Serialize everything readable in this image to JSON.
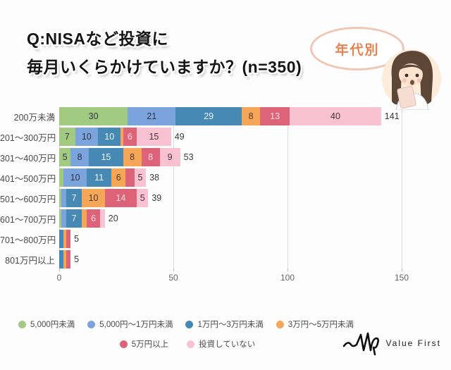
{
  "header": {
    "title_line1": "Q:NISAなど投資に",
    "title_line2": "毎月いくらかけていますか？(n=350)",
    "badge_label": "年代別"
  },
  "chart_data": {
    "type": "bar",
    "orientation": "horizontal-stacked",
    "title": "Q:NISAなど投資に毎月いくらかけていますか？(n=350)",
    "categories": [
      "200万未満",
      "201～300万円",
      "301～400万円",
      "401～500万円",
      "501～600万円",
      "601～700万円",
      "701～800万円",
      "801万円以上"
    ],
    "series": [
      {
        "name": "5,000円未満",
        "color": "#a2cb81",
        "label_color": "#33334a",
        "values": [
          30,
          7,
          5,
          2,
          1,
          1,
          0,
          0
        ]
      },
      {
        "name": "5,000円～1万円未満",
        "color": "#7ca4dc",
        "label_color": "#2e2e45",
        "values": [
          21,
          10,
          8,
          10,
          2,
          2,
          0,
          0
        ]
      },
      {
        "name": "1万円～3万円未満",
        "color": "#4589b4",
        "label_color": "#eef6fa",
        "values": [
          29,
          10,
          15,
          11,
          7,
          7,
          2,
          2
        ]
      },
      {
        "name": "3万円～5万円未満",
        "color": "#f5a757",
        "label_color": "#4f3a26",
        "values": [
          8,
          1,
          8,
          6,
          10,
          2,
          1,
          1
        ]
      },
      {
        "name": "5万円以上",
        "color": "#dc6378",
        "label_color": "#fbdde4",
        "values": [
          13,
          6,
          8,
          4,
          14,
          6,
          2,
          2
        ]
      },
      {
        "name": "投資していない",
        "color": "#f9c2d3",
        "label_color": "#463339",
        "values": [
          40,
          15,
          9,
          5,
          5,
          2,
          0,
          0
        ]
      }
    ],
    "totals": [
      141,
      49,
      53,
      38,
      39,
      20,
      5,
      5
    ],
    "xticks": [
      0,
      50,
      100,
      150
    ],
    "xmax": 150,
    "min_label_value": 5,
    "grid": true,
    "gridline_color": "#dcdcdc",
    "legend_position": "bottom",
    "legend_rows": [
      [
        0,
        1,
        2,
        3
      ],
      [
        4,
        5
      ]
    ]
  },
  "footer": {
    "brand": "Value First"
  }
}
